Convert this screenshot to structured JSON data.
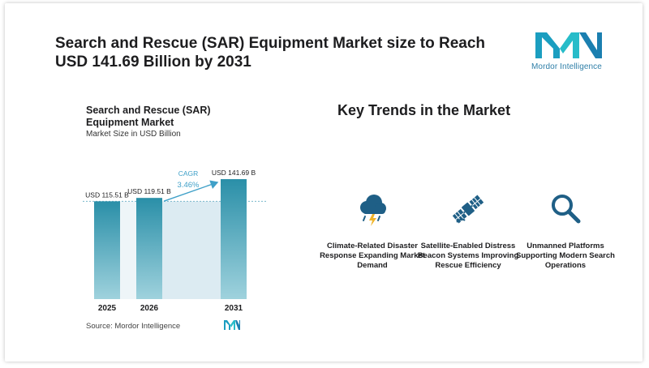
{
  "header": {
    "title": "Search and Rescue (SAR) Equipment Market size to Reach USD 141.69 Billion by 2031",
    "logo_text": "Mordor Intelligence"
  },
  "chart_data": {
    "type": "bar",
    "title": "Search and Rescue (SAR) Equipment Market",
    "subtitle": "Market Size in USD Billion",
    "categories": [
      "2025",
      "2026",
      "2031"
    ],
    "values": [
      115.51,
      119.51,
      141.69
    ],
    "value_labels": [
      "USD 115.51 B",
      "USD 119.51 B",
      "USD 141.69 B"
    ],
    "cagr_label": "CAGR",
    "cagr_value": "3.46%",
    "colors": {
      "bar_top": "#2a8fa8",
      "bar_bottom": "#9fd2dd",
      "band": "#dcebf2",
      "arrow": "#3fa0c8"
    }
  },
  "source": {
    "text": "Source:  Mordor Intelligence"
  },
  "trends": {
    "title": "Key Trends in the Market",
    "items": [
      {
        "icon": "storm-cloud-icon",
        "label": "Climate-Related Disaster Response Expanding Market Demand"
      },
      {
        "icon": "satellite-icon",
        "label": "Satellite-Enabled Distress Beacon Systems Improving Rescue Efficiency"
      },
      {
        "icon": "magnifier-icon",
        "label": "Unmanned Platforms Supporting Modern Search Operations"
      }
    ]
  }
}
